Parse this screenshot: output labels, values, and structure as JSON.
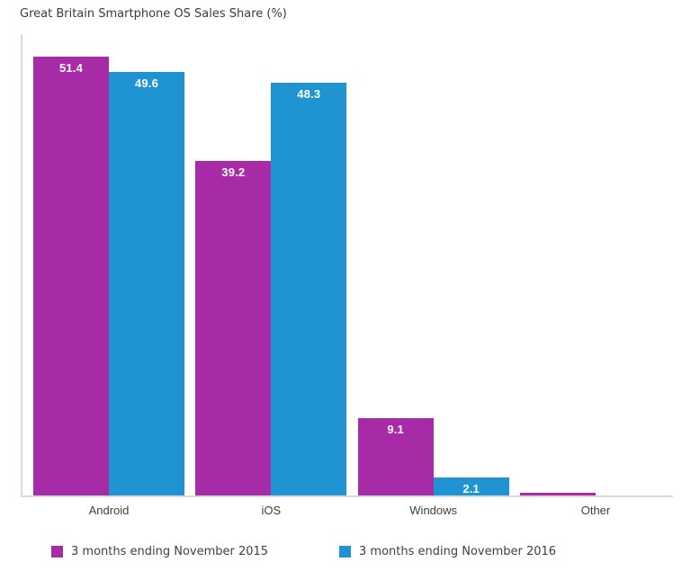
{
  "title": "Great Britain Smartphone OS Sales Share (%)",
  "colors": {
    "series_2015": "#A72BA7",
    "series_2016": "#2094D3",
    "axis_line": "#D9D9D9",
    "title_text": "#3C3C3C",
    "category_text": "#3F3F3F",
    "legend_text": "#3D3D4E",
    "bar_label_text": "#FFFFFF",
    "background": "#FFFFFF"
  },
  "chart_data": {
    "type": "bar",
    "title": "Great Britain Smartphone OS Sales Share (%)",
    "categories": [
      "Android",
      "iOS",
      "Windows",
      "Other"
    ],
    "series": [
      {
        "name": "3 months ending November 2015",
        "color": "#A72BA7",
        "values": [
          51.4,
          39.2,
          9.1,
          0.3
        ],
        "labels": [
          "51.4",
          "39.2",
          "9.1",
          ""
        ]
      },
      {
        "name": "3 months ending November 2016",
        "color": "#2094D3",
        "values": [
          49.6,
          48.3,
          2.1,
          0.0
        ],
        "labels": [
          "49.6",
          "48.3",
          "2.1",
          ""
        ]
      }
    ],
    "xlabel": "",
    "ylabel": "",
    "ylim": [
      0,
      54
    ],
    "grid": false,
    "legend_position": "bottom",
    "value_labels_shown": true
  },
  "legend": {
    "items": [
      {
        "label": "3 months ending November 2015",
        "color": "#A72BA7"
      },
      {
        "label": "3 months ending November 2016",
        "color": "#2094D3"
      }
    ]
  }
}
